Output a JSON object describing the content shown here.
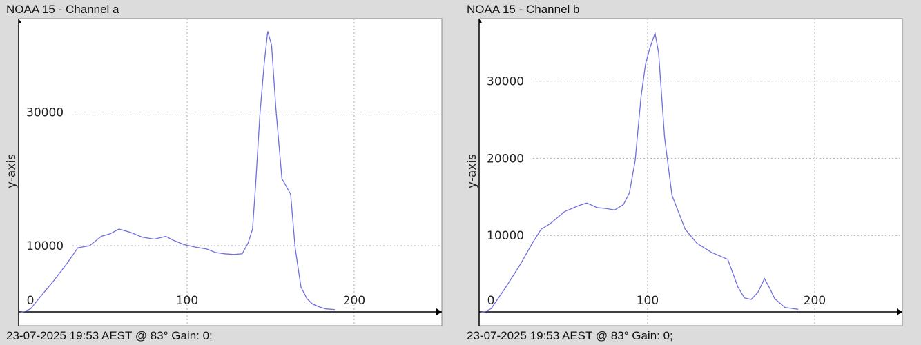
{
  "chart_data": [
    {
      "type": "line",
      "title": "NOAA 15 - Channel a",
      "footer": "23-07-2025 19:53 AEST @ 83° Gain: 0;",
      "xlabel": "",
      "ylabel": "y-axis",
      "xlim": [
        -0.8,
        252.5
      ],
      "ylim": [
        0,
        44000
      ],
      "xticks": [
        0,
        100,
        200
      ],
      "xtick_labels": [
        "0",
        "100",
        "200"
      ],
      "yticks": [
        10000,
        30000
      ],
      "ytick_labels": [
        "10000",
        "30000"
      ],
      "grid": true,
      "line_color": "#6f6fe0",
      "series": [
        {
          "name": "Channel a",
          "x": [
            0,
            3,
            6.4,
            12,
            20,
            28,
            34.6,
            41.6,
            48.6,
            54,
            59.2,
            66.2,
            73,
            80.3,
            87.3,
            92,
            97.9,
            105,
            111.9,
            117,
            122.5,
            128,
            133,
            136.5,
            139.2,
            141,
            143.6,
            146.2,
            148.3,
            150.6,
            153.2,
            156.8,
            158.5,
            162,
            164.7,
            168.2,
            171.7,
            175,
            178.8,
            183,
            188.4
          ],
          "y": [
            0,
            200,
            570,
            2300,
            4700,
            7300,
            9700,
            10000,
            11400,
            11800,
            12500,
            12000,
            11300,
            11000,
            11400,
            10800,
            10200,
            9800,
            9500,
            9000,
            8800,
            8700,
            8800,
            10400,
            12500,
            19000,
            29700,
            37300,
            42100,
            40000,
            30400,
            20000,
            19300,
            17700,
            9700,
            3800,
            2100,
            1300,
            880,
            550,
            450
          ]
        }
      ]
    },
    {
      "type": "line",
      "title": "NOAA 15 - Channel b",
      "footer": "23-07-2025 19:53 AEST @ 83° Gain: 0;",
      "xlabel": "",
      "ylabel": "y-axis",
      "xlim": [
        -0.8,
        252.5
      ],
      "ylim": [
        0,
        38100
      ],
      "xticks": [
        0,
        100,
        200
      ],
      "xtick_labels": [
        "0",
        "100",
        "200"
      ],
      "yticks": [
        10000,
        20000,
        30000
      ],
      "ytick_labels": [
        "10000",
        "20000",
        "30000"
      ],
      "grid": true,
      "line_color": "#6f6fe0",
      "series": [
        {
          "name": "Channel b",
          "x": [
            0,
            3,
            6.4,
            15.2,
            24,
            31,
            36.3,
            41.6,
            50.4,
            59.2,
            63.6,
            69.7,
            75,
            80.3,
            85.5,
            89.1,
            92.6,
            96.1,
            98.8,
            101.4,
            104.5,
            106.6,
            110.2,
            114.6,
            122.5,
            129.5,
            138.3,
            148,
            154.1,
            158,
            162,
            166,
            170,
            173,
            176.1,
            182.3,
            190.2
          ],
          "y": [
            0,
            150,
            510,
            3300,
            6300,
            9000,
            10800,
            11500,
            13100,
            13900,
            14200,
            13600,
            13500,
            13300,
            14000,
            15500,
            19700,
            28000,
            32200,
            34300,
            36200,
            33700,
            22700,
            15200,
            10800,
            9000,
            7800,
            6900,
            3300,
            1900,
            1700,
            2600,
            4400,
            3200,
            1800,
            650,
            420
          ]
        }
      ]
    }
  ]
}
